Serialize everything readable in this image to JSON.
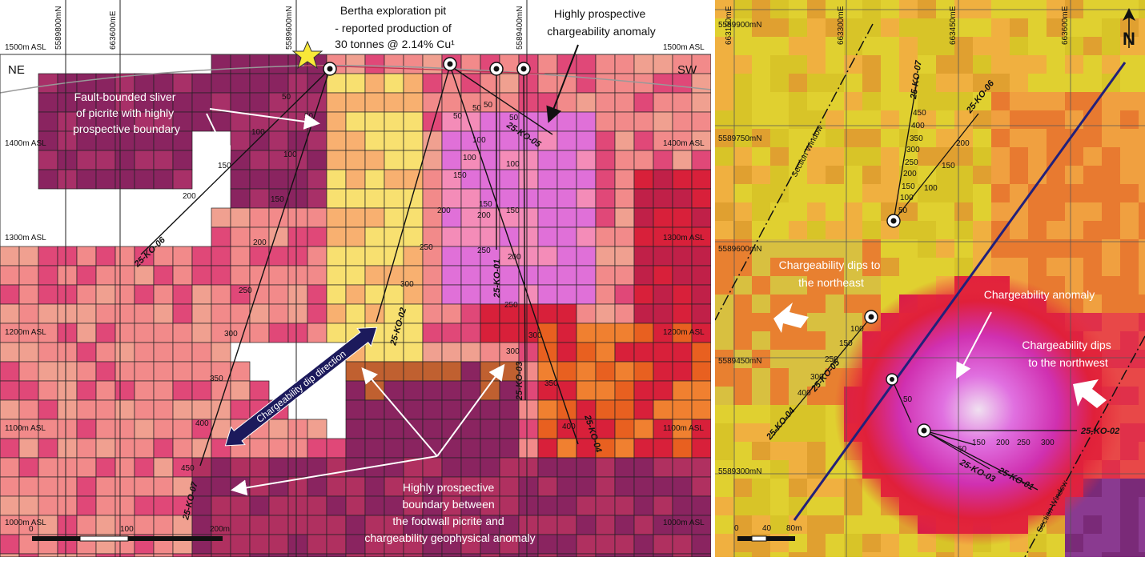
{
  "section": {
    "easting_labels": [
      "5589800mN",
      "663600mE",
      "5589600mN",
      "5589400mN"
    ],
    "elevation_labels": [
      "1500m ASL",
      "1400m ASL",
      "1300m ASL",
      "1200m ASL",
      "1100m ASL",
      "1000m ASL"
    ],
    "orientation": {
      "left": "NE",
      "right": "SW"
    },
    "pit_label": [
      "Bertha exploration pit",
      "-    reported production of",
      "30 tonnes @ 2.14% Cu¹"
    ],
    "anomaly_label": [
      "Highly prospective",
      "chargeability anomaly"
    ],
    "sliver_label": [
      "Fault-bounded sliver",
      "of picrite with highly",
      "prospective boundary"
    ],
    "boundary_label": [
      "Highly prospective",
      "boundary between",
      "the footwall picrite and",
      "chargeability geophysical anomaly"
    ],
    "dip_arrow_label": "Chargeability dip direction",
    "holes": [
      "25-KO-06",
      "25-KO-07",
      "25-KO-02",
      "25-KO-01",
      "25-KO-05",
      "25-KO-03",
      "25-KO-04"
    ],
    "depth_marks": [
      "50",
      "100",
      "150",
      "200",
      "250",
      "300",
      "350",
      "400",
      "450"
    ],
    "scale_labels": [
      "0",
      "100",
      "200m"
    ],
    "colors": {
      "purple": "#8a2460",
      "magenta": "#e04878",
      "salmon": "#f28a8a",
      "pink": "#f48cb8",
      "yellow": "#f8e070",
      "orange": "#f08030",
      "red": "#d8203a",
      "violet": "#e070d8"
    }
  },
  "plan": {
    "coord_labels": [
      "663150mE",
      "663300mE",
      "663450mE",
      "663600mE",
      "5589900mN",
      "5589750mN",
      "5589600mN",
      "5589450mN",
      "5589300mN"
    ],
    "section_window_label": "Section Window",
    "dip_ne_label": [
      "Chargeability dips to",
      "the northeast"
    ],
    "anomaly_label": "Chargeability anomaly",
    "dip_nw_label": [
      "Chargeability dips",
      "to the northwest"
    ],
    "holes": [
      "25-KO-07",
      "25-KO-06",
      "25-KO-04",
      "25-KO-05",
      "25-KO-03",
      "25-KO-01",
      "25-KO-02"
    ],
    "depth_marks": [
      "450",
      "400",
      "350",
      "300",
      "250",
      "200",
      "150",
      "100",
      "50"
    ],
    "scale_labels": [
      "0",
      "40",
      "80m"
    ],
    "north_icon": "north-arrow-icon"
  }
}
